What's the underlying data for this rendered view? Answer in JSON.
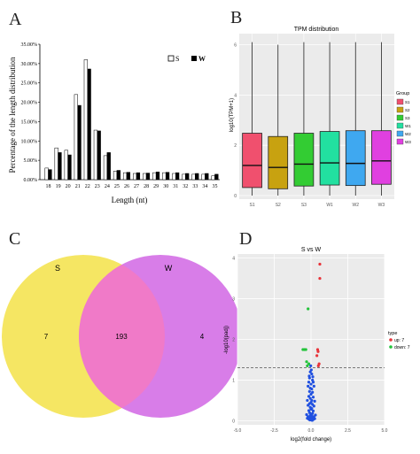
{
  "panel_letters": [
    "A",
    "B",
    "C",
    "D"
  ],
  "chart_data": [
    {
      "type": "bar",
      "panel": "A",
      "title": "",
      "xlabel": "Length (nt)",
      "ylabel": "Percentage of the length distribution",
      "categories": [
        "18",
        "19",
        "20",
        "21",
        "22",
        "23",
        "24",
        "25",
        "26",
        "27",
        "28",
        "29",
        "30",
        "31",
        "32",
        "33",
        "34",
        "35"
      ],
      "series": [
        {
          "name": "S",
          "color": "#ffffff",
          "values": [
            3.0,
            8.2,
            7.6,
            22.0,
            31.0,
            12.8,
            6.2,
            2.2,
            1.8,
            1.6,
            1.6,
            1.8,
            1.8,
            1.6,
            1.4,
            1.4,
            1.4,
            1.0
          ]
        },
        {
          "name": "W",
          "color": "#000000",
          "values": [
            2.6,
            7.0,
            6.4,
            19.2,
            28.6,
            12.6,
            7.0,
            2.4,
            1.9,
            1.8,
            1.7,
            2.0,
            1.9,
            1.8,
            1.6,
            1.6,
            1.6,
            1.4
          ]
        }
      ],
      "yticks": [
        "0.00%",
        "5.00%",
        "10.00%",
        "15.00%",
        "20.00%",
        "25.00%",
        "30.00%",
        "35.00%"
      ],
      "ylim": [
        0,
        35
      ],
      "legend": "top-right"
    },
    {
      "type": "box",
      "panel": "B",
      "title": "TPM distribution",
      "xlabel": "",
      "ylabel": "log10(TPM+1)",
      "categories": [
        "S1",
        "S2",
        "S3",
        "W1",
        "W2",
        "W3"
      ],
      "legend_title": "Group",
      "colors": [
        "#f0506e",
        "#c8a210",
        "#33cc33",
        "#22e0a0",
        "#3fa8f0",
        "#e040e0"
      ],
      "boxes": [
        {
          "whisker_low": 0.0,
          "q1": 0.32,
          "median": 1.2,
          "q3": 2.48,
          "whisker_high": 6.1
        },
        {
          "whisker_low": 0.0,
          "q1": 0.27,
          "median": 1.12,
          "q3": 2.35,
          "whisker_high": 6.0
        },
        {
          "whisker_low": 0.0,
          "q1": 0.38,
          "median": 1.25,
          "q3": 2.48,
          "whisker_high": 6.1
        },
        {
          "whisker_low": 0.0,
          "q1": 0.42,
          "median": 1.3,
          "q3": 2.55,
          "whisker_high": 6.1
        },
        {
          "whisker_low": 0.0,
          "q1": 0.4,
          "median": 1.28,
          "q3": 2.58,
          "whisker_high": 6.1
        },
        {
          "whisker_low": 0.0,
          "q1": 0.45,
          "median": 1.38,
          "q3": 2.58,
          "whisker_high": 6.1
        }
      ],
      "ylim": [
        0,
        6.3
      ],
      "yticks": [
        0,
        2,
        4,
        6
      ],
      "legend": "right"
    },
    {
      "type": "venn",
      "panel": "C",
      "sets": [
        {
          "name": "S",
          "only": 7,
          "color": "#f5e663"
        },
        {
          "name": "W",
          "only": 4,
          "color": "#d87de8"
        }
      ],
      "intersection": 193,
      "intersection_color": "#f07ac8"
    },
    {
      "type": "scatter",
      "panel": "D",
      "title": "S vs W",
      "xlabel": "log2(fold change)",
      "ylabel": "-log10(padj)",
      "xticks": [
        "-5.0",
        "-2.5",
        "0.0",
        "2.5",
        "5.0"
      ],
      "yticks": [
        "0",
        "1",
        "2",
        "3",
        "4"
      ],
      "xlim": [
        -5,
        5
      ],
      "ylim": [
        -0.1,
        4.1
      ],
      "threshold_y": 1.3,
      "legend_title": "type",
      "legend": "right",
      "series": [
        {
          "name": "up: 7",
          "color": "#e8343a",
          "points": [
            [
              0.6,
              3.85
            ],
            [
              0.6,
              3.5
            ],
            [
              0.45,
              1.75
            ],
            [
              0.48,
              1.7
            ],
            [
              0.4,
              1.6
            ],
            [
              0.55,
              1.4
            ],
            [
              0.5,
              1.35
            ]
          ]
        },
        {
          "name": "down: 7",
          "color": "#22c33a",
          "points": [
            [
              -0.2,
              2.75
            ],
            [
              -0.55,
              1.75
            ],
            [
              -0.45,
              1.75
            ],
            [
              -0.35,
              1.75
            ],
            [
              -0.3,
              1.45
            ],
            [
              -0.15,
              1.4
            ],
            [
              -0.25,
              1.35
            ]
          ]
        },
        {
          "name": "",
          "color": "#2050e0",
          "points": [
            [
              -0.05,
              1.2
            ],
            [
              0.05,
              1.15
            ],
            [
              -0.1,
              1.05
            ],
            [
              0.1,
              1.0
            ],
            [
              -0.15,
              0.95
            ],
            [
              0.15,
              0.95
            ],
            [
              0.0,
              0.9
            ],
            [
              -0.2,
              0.85
            ],
            [
              0.2,
              0.85
            ],
            [
              -0.05,
              0.8
            ],
            [
              0.05,
              0.78
            ],
            [
              -0.1,
              0.72
            ],
            [
              0.1,
              0.7
            ],
            [
              0.0,
              0.65
            ],
            [
              -0.15,
              0.6
            ],
            [
              0.15,
              0.58
            ],
            [
              -0.05,
              0.55
            ],
            [
              0.05,
              0.5
            ],
            [
              -0.25,
              0.5
            ],
            [
              0.25,
              0.48
            ],
            [
              0.0,
              0.45
            ],
            [
              -0.1,
              0.42
            ],
            [
              0.1,
              0.4
            ],
            [
              -0.2,
              0.38
            ],
            [
              0.2,
              0.36
            ],
            [
              -0.05,
              0.33
            ],
            [
              0.05,
              0.3
            ],
            [
              0.0,
              0.28
            ],
            [
              -0.15,
              0.25
            ],
            [
              0.15,
              0.24
            ],
            [
              -0.1,
              0.2
            ],
            [
              0.1,
              0.18
            ],
            [
              0.0,
              0.16
            ],
            [
              -0.05,
              0.13
            ],
            [
              0.05,
              0.12
            ],
            [
              -0.2,
              0.1
            ],
            [
              0.2,
              0.1
            ],
            [
              -0.1,
              0.08
            ],
            [
              0.1,
              0.07
            ],
            [
              0.0,
              0.06
            ],
            [
              -0.05,
              0.05
            ],
            [
              0.05,
              0.04
            ],
            [
              -0.15,
              0.04
            ],
            [
              0.15,
              0.03
            ],
            [
              0.0,
              0.02
            ],
            [
              -0.08,
              0.02
            ],
            [
              0.08,
              0.01
            ],
            [
              -0.25,
              0.06
            ],
            [
              0.25,
              0.05
            ],
            [
              -0.3,
              0.15
            ],
            [
              0.3,
              0.14
            ],
            [
              -0.02,
              1.35
            ],
            [
              0.02,
              1.25
            ],
            [
              -0.12,
              1.1
            ],
            [
              0.12,
              1.08
            ]
          ]
        }
      ]
    }
  ]
}
